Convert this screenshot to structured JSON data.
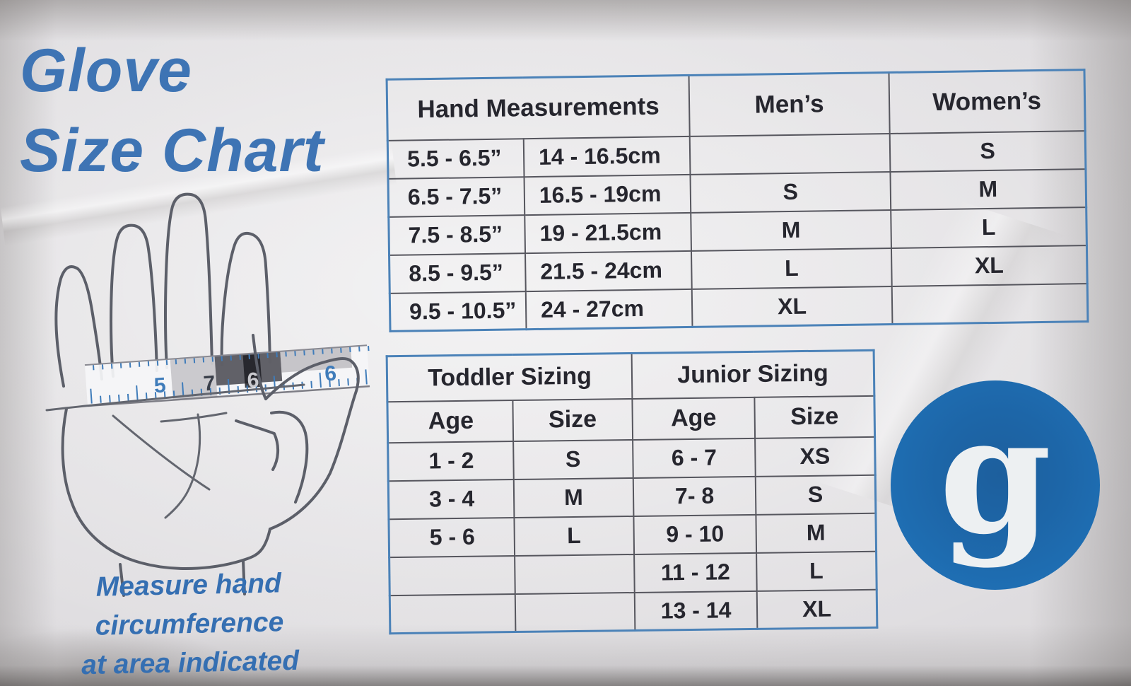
{
  "header": {
    "title_line1": "Glove",
    "title_line2": "Size Chart"
  },
  "caption": {
    "line1": "Measure hand circumference",
    "line2": "at area indicated"
  },
  "hand": {
    "tape_numbers": [
      "5",
      "7",
      "6",
      "6"
    ]
  },
  "size_table": {
    "headers": {
      "hand": "Hand Measurements",
      "mens": "Men’s",
      "womens": "Women’s"
    },
    "rows": [
      {
        "inches": "5.5 - 6.5”",
        "cm": "14 - 16.5cm",
        "mens": "",
        "womens": "S"
      },
      {
        "inches": "6.5 - 7.5”",
        "cm": "16.5 - 19cm",
        "mens": "S",
        "womens": "M"
      },
      {
        "inches": "7.5 - 8.5”",
        "cm": "19 - 21.5cm",
        "mens": "M",
        "womens": "L"
      },
      {
        "inches": "8.5 - 9.5”",
        "cm": "21.5 - 24cm",
        "mens": "L",
        "womens": "XL"
      },
      {
        "inches": "9.5 - 10.5”",
        "cm": "24 - 27cm",
        "mens": "XL",
        "womens": ""
      }
    ]
  },
  "kids_table": {
    "toddler_header": "Toddler Sizing",
    "junior_header": "Junior Sizing",
    "age_label": "Age",
    "size_label": "Size",
    "rows": [
      {
        "t_age": "1 - 2",
        "t_size": "S",
        "j_age": "6 - 7",
        "j_size": "XS"
      },
      {
        "t_age": "3 - 4",
        "t_size": "M",
        "j_age": "7- 8",
        "j_size": "S"
      },
      {
        "t_age": "5 - 6",
        "t_size": "L",
        "j_age": "9 - 10",
        "j_size": "M"
      },
      {
        "t_age": "",
        "t_size": "",
        "j_age": "11 - 12",
        "j_size": "L"
      },
      {
        "t_age": "",
        "t_size": "",
        "j_age": "13 - 14",
        "j_size": "XL"
      }
    ]
  },
  "logo": {
    "letter": "g"
  },
  "colors": {
    "accent_blue": "#3e74b4",
    "table_border_blue": "#4b82b8",
    "grid_line_gray": "#56565e",
    "logo_blue": "#1d69af",
    "ink": "#26262e"
  }
}
